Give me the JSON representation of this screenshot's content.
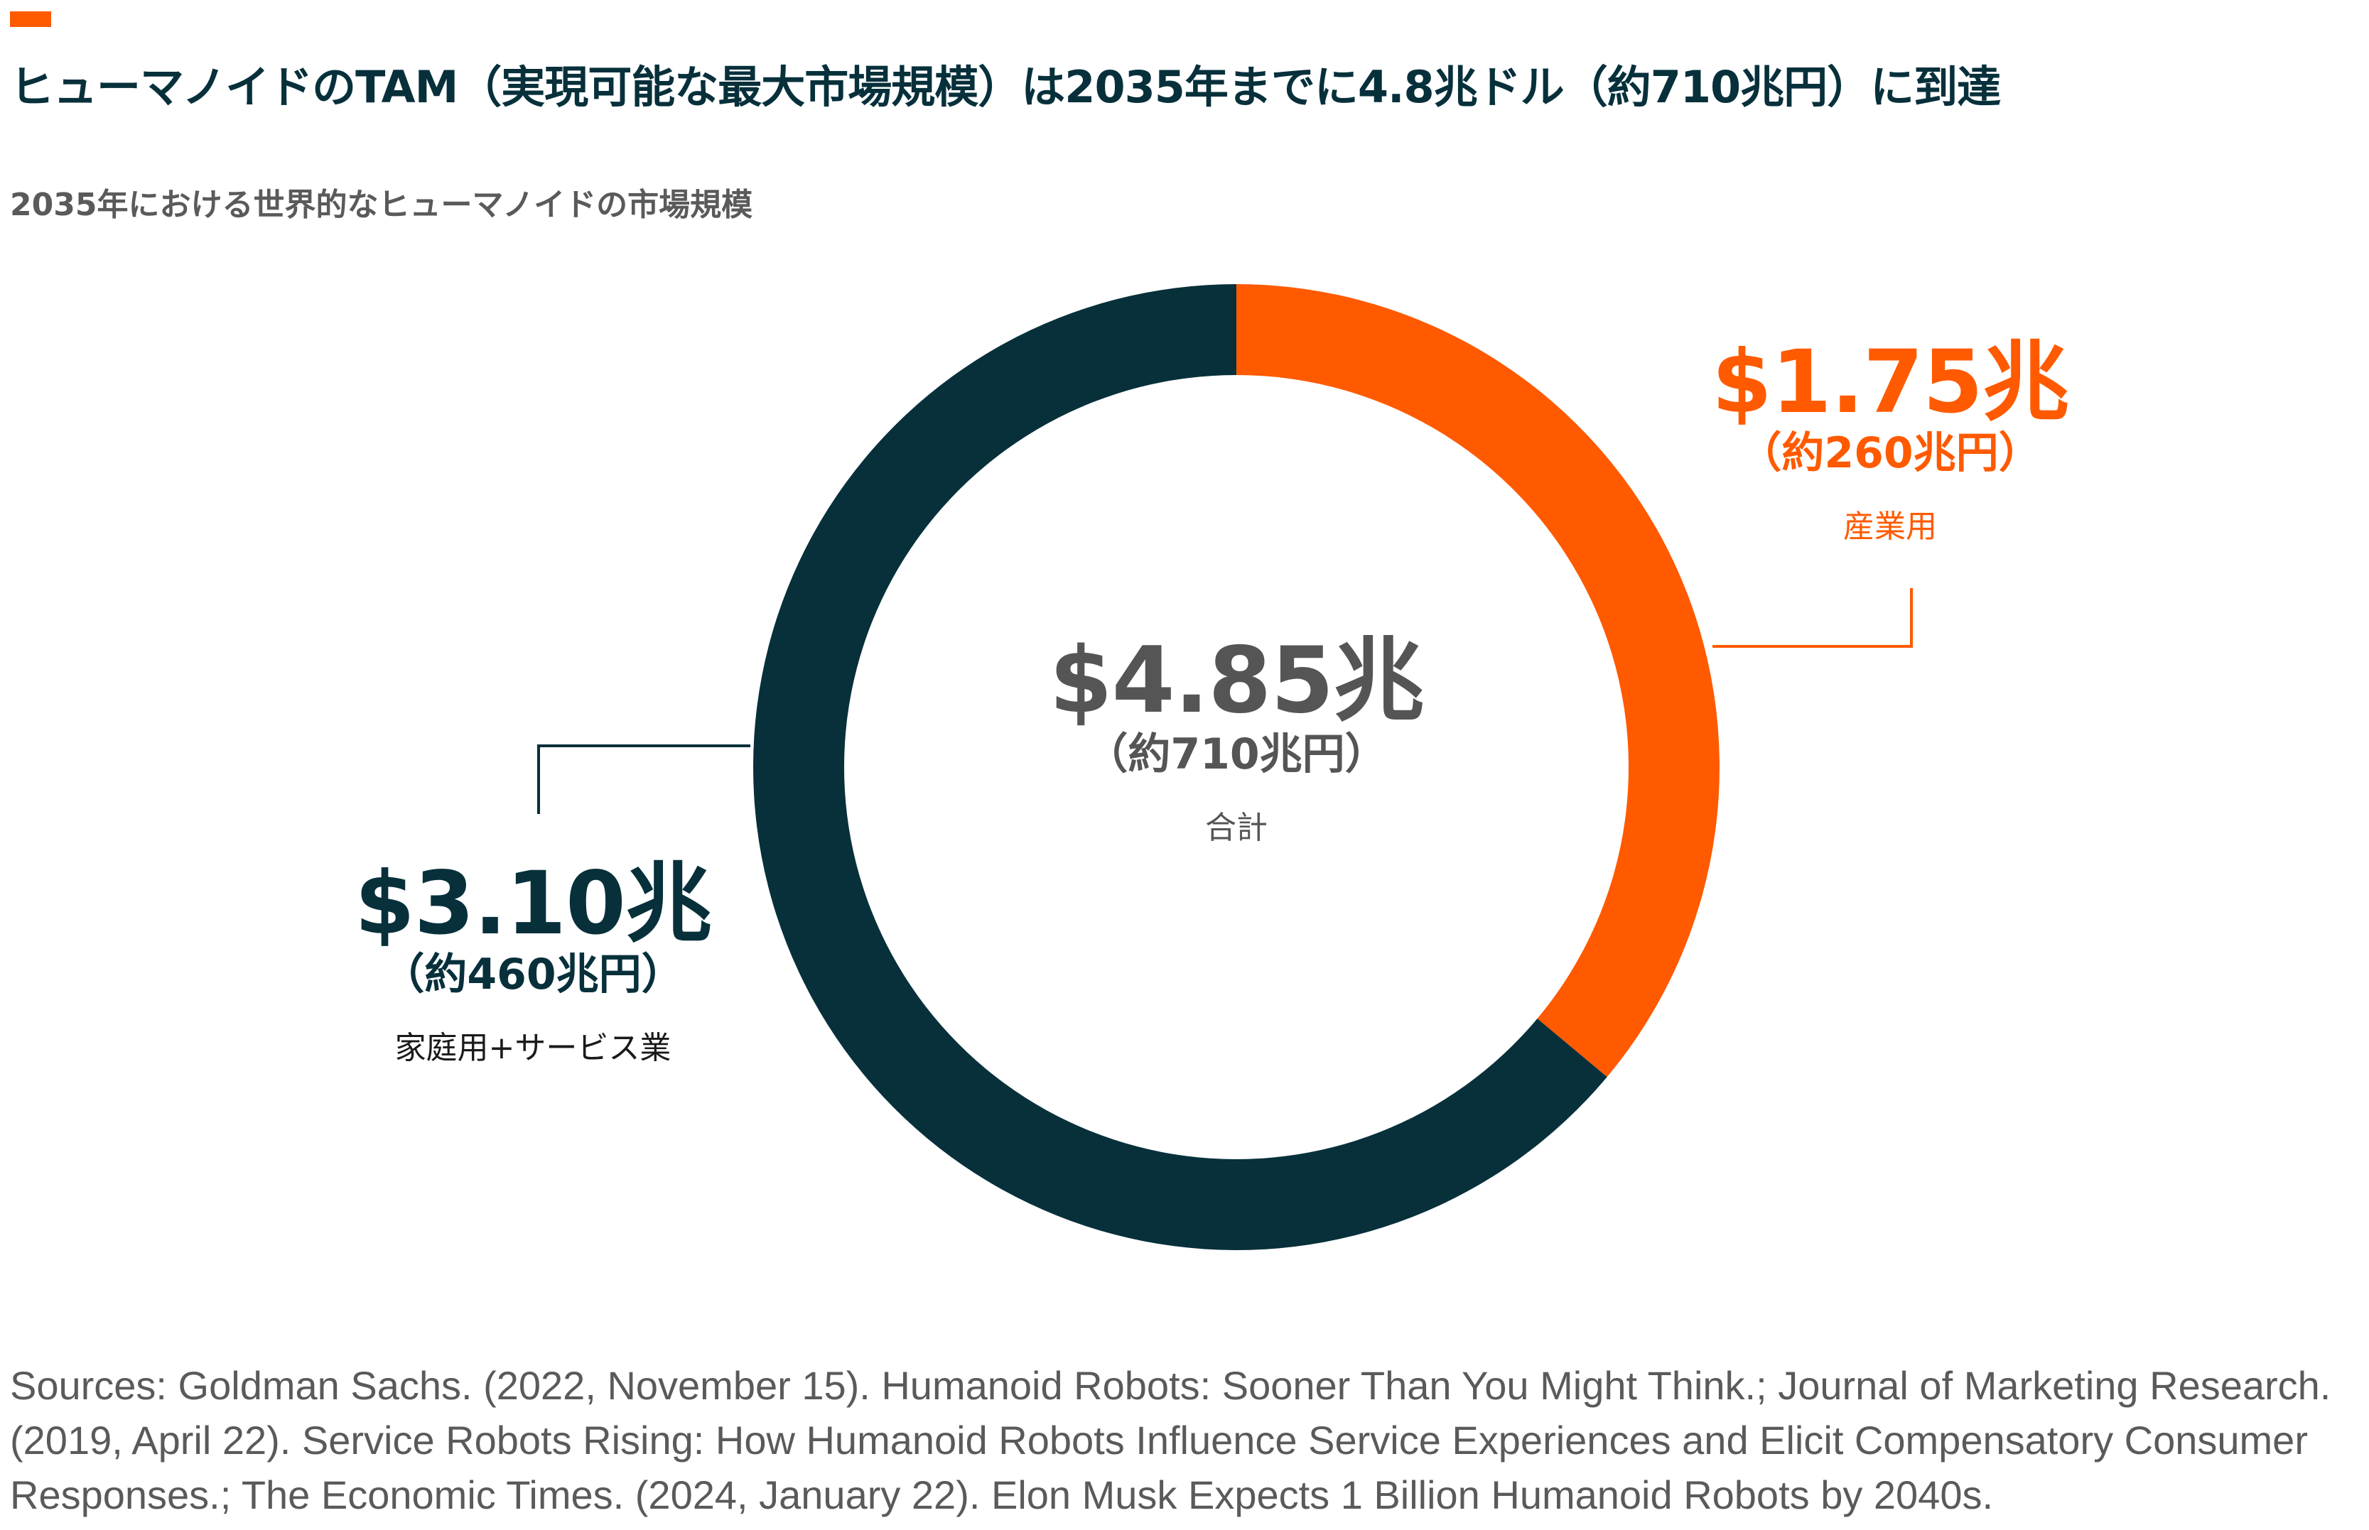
{
  "header": {
    "title": "ヒューマノイドのTAM（実現可能な最大市場規模）は2035年までに4.8兆ドル（約710兆円）に到達",
    "subtitle": "2035年における世界的なヒューマノイドの市場規模"
  },
  "chart_data": {
    "type": "pie",
    "variant": "donut",
    "title": "2035年における世界的なヒューマノイドの市場規模",
    "unit": "兆ドル",
    "total": {
      "value": 4.85,
      "label": "$4.85兆",
      "yen": "（約710兆円）",
      "caption": "合計"
    },
    "slices": [
      {
        "name": "産業用",
        "value": 1.75,
        "label": "$1.75兆",
        "yen": "（約260兆円）",
        "color": "#ff5a00"
      },
      {
        "name": "家庭用+サービス業",
        "value": 3.1,
        "label": "$3.10兆",
        "yen": "（約460兆円）",
        "color": "#07303b"
      }
    ]
  },
  "footer": {
    "sources": "Sources: Goldman Sachs. (2022, November 15). Humanoid Robots: Sooner Than You Might Think.; Journal of Marketing Research. (2019, April 22). Service Robots Rising: How Humanoid Robots Influence Service Experiences and Elicit Compensatory Consumer Responses.; The Economic Times. (2024, January 22). Elon Musk Expects 1 Billion Humanoid Robots by 2040s."
  }
}
